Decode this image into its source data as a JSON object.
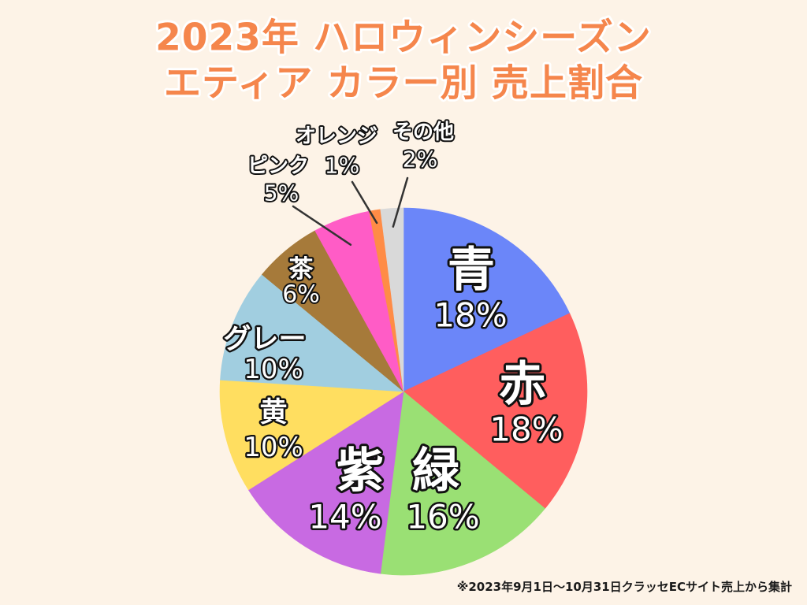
{
  "colors": {
    "background": "#FDF3E7",
    "title_fill": "#F5864C",
    "title_outline": "#FFFFFF",
    "label_fill": "#FFFFFF",
    "label_outline": "#111111",
    "leader_line": "#333333",
    "footnote": "#1A1A1A"
  },
  "footnote": "※2023年9月1日〜10月31日クラッセECサイト売上から集計",
  "chart_data": {
    "type": "pie",
    "title": [
      "2023年 ハロウィンシーズン",
      "エティア カラー別 売上割合"
    ],
    "slices": [
      {
        "label": "青",
        "value": 18,
        "value_label": "18%",
        "color": "#6B86F9",
        "label_placement": "inside"
      },
      {
        "label": "赤",
        "value": 18,
        "value_label": "18%",
        "color": "#FF5E5E",
        "label_placement": "inside"
      },
      {
        "label": "緑",
        "value": 16,
        "value_label": "16%",
        "color": "#9AE074",
        "label_placement": "inside"
      },
      {
        "label": "紫",
        "value": 14,
        "value_label": "14%",
        "color": "#C86AE2",
        "label_placement": "inside"
      },
      {
        "label": "黄",
        "value": 10,
        "value_label": "10%",
        "color": "#FFDE60",
        "label_placement": "inside"
      },
      {
        "label": "グレー",
        "value": 10,
        "value_label": "10%",
        "color": "#A1CEE0",
        "label_placement": "inside"
      },
      {
        "label": "茶",
        "value": 6,
        "value_label": "6%",
        "color": "#A67A3A",
        "label_placement": "inside"
      },
      {
        "label": "ピンク",
        "value": 5,
        "value_label": "5%",
        "color": "#FF5CC6",
        "label_placement": "outside"
      },
      {
        "label": "オレンジ",
        "value": 1,
        "value_label": "1%",
        "color": "#FF8C46",
        "label_placement": "outside"
      },
      {
        "label": "その他",
        "value": 2,
        "value_label": "2%",
        "color": "#D9D9D9",
        "label_placement": "outside"
      }
    ]
  }
}
